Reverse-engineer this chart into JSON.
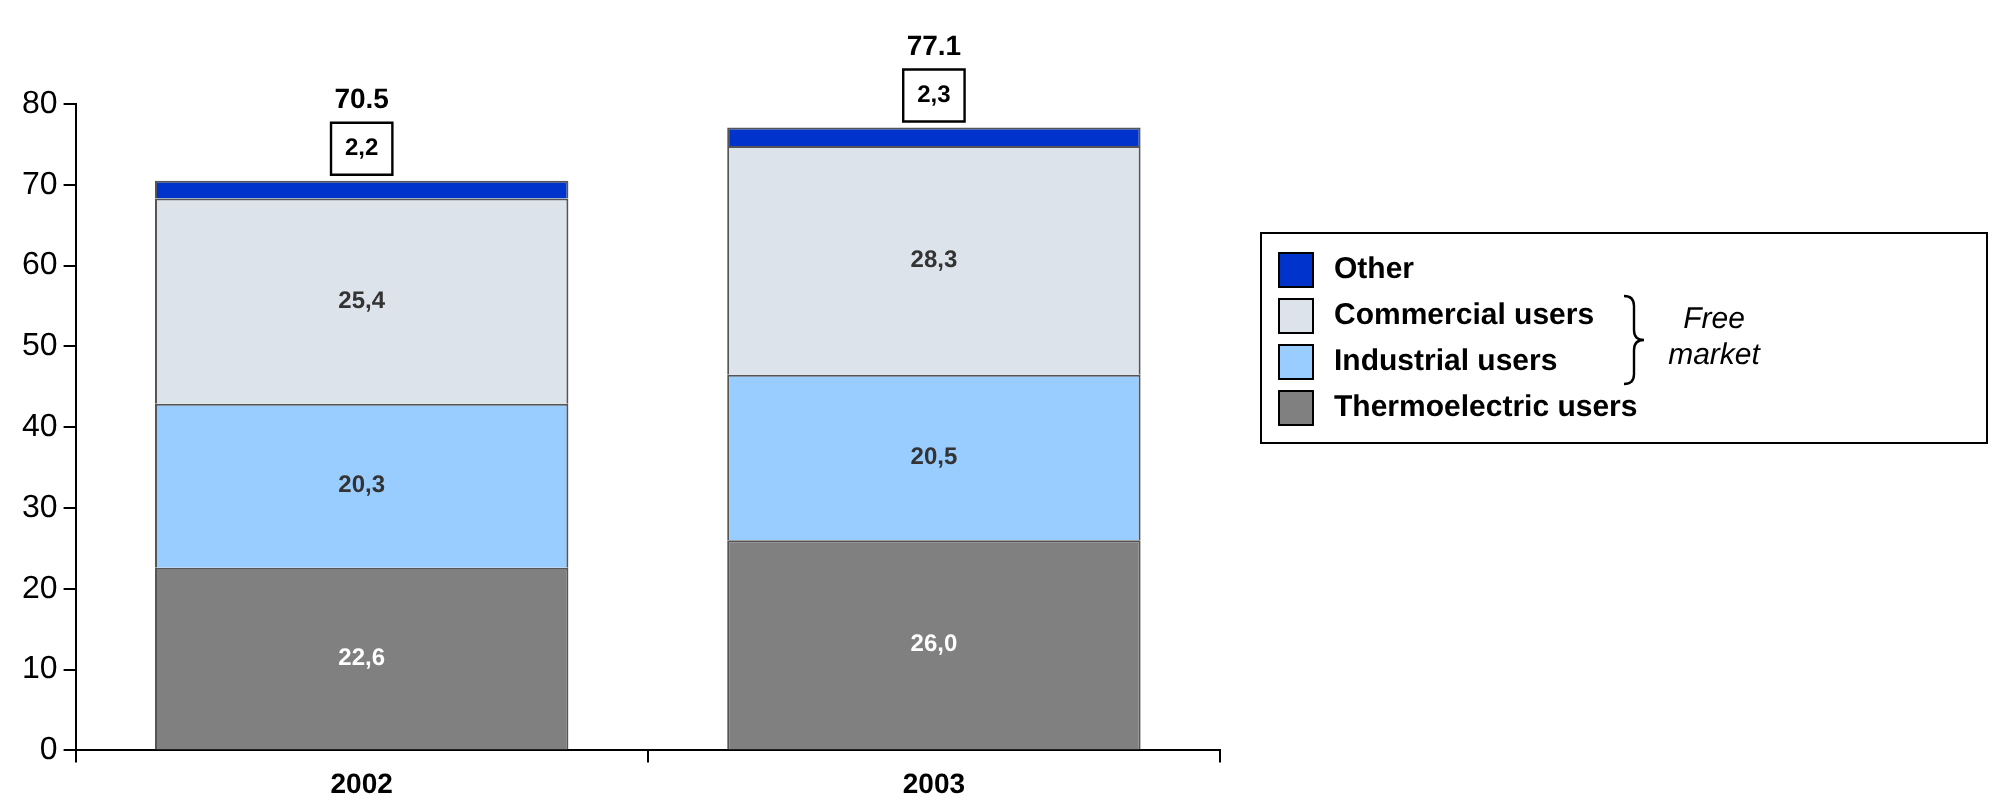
{
  "chart_data": {
    "type": "bar",
    "stacked": true,
    "categories": [
      "2002",
      "2003"
    ],
    "series": [
      {
        "name": "Thermoelectric users",
        "color": "#808080",
        "values": [
          22.6,
          26.0
        ],
        "value_labels": [
          "22,6",
          "26,0"
        ]
      },
      {
        "name": "Industrial users",
        "color": "#99ccff",
        "values": [
          20.3,
          20.5
        ],
        "value_labels": [
          "20,3",
          "20,5"
        ]
      },
      {
        "name": "Commercial users",
        "color": "#dde3ea",
        "values": [
          25.4,
          28.3
        ],
        "value_labels": [
          "25,4",
          "28,3"
        ]
      },
      {
        "name": "Other",
        "color": "#0033cc",
        "values": [
          2.2,
          2.3
        ],
        "value_labels": [
          "2,2",
          "2,3"
        ]
      }
    ],
    "totals": [
      "70.5",
      "77.1"
    ],
    "ylim": [
      0,
      80
    ],
    "yticks": [
      0,
      10,
      20,
      30,
      40,
      50,
      60,
      70,
      80
    ],
    "grid": false,
    "legend": "right",
    "annotations": [
      "Free market"
    ]
  }
}
